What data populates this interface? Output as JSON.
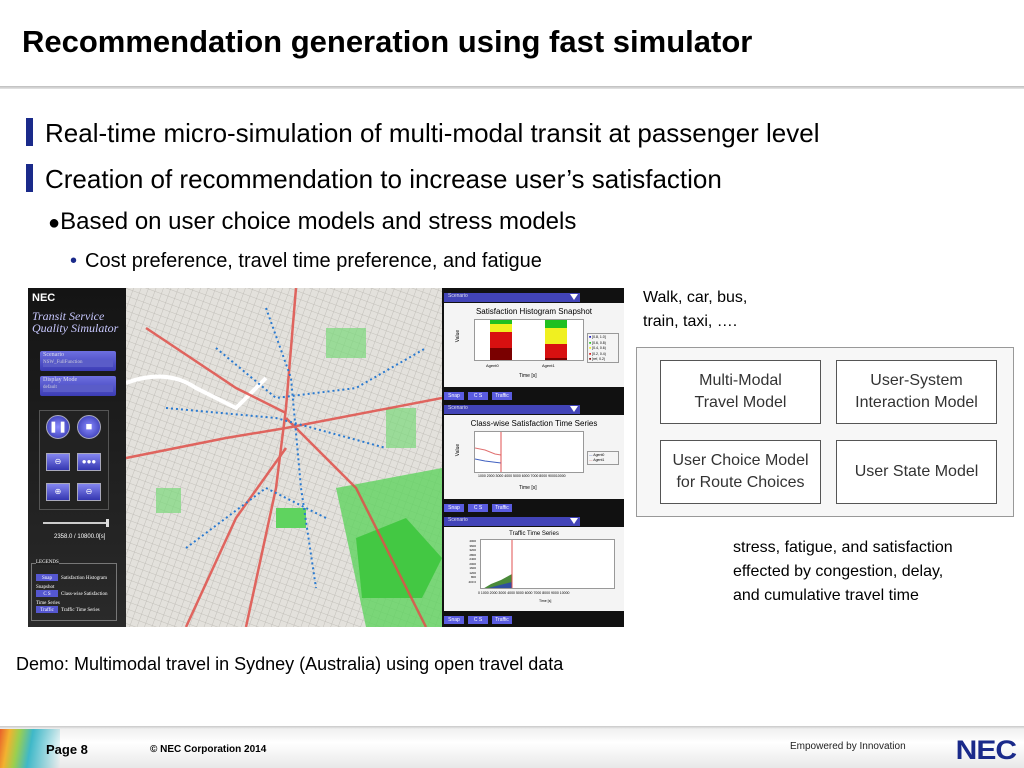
{
  "title": "Recommendation generation using fast simulator",
  "bullets": {
    "b1": "Real-time micro-simulation of multi-modal transit at passenger level",
    "b2": "Creation of recommendation to increase user’s satisfaction",
    "b3": "Based on user choice models and stress models",
    "b4": "Cost preference, travel time preference, and fatigue"
  },
  "simulator": {
    "logo": "NEC",
    "app_title": "Transit Service Quality Simulator",
    "scenario_label": "Scenario",
    "scenario_value": "NSW_FullFunction",
    "display_mode_label": "Display Mode",
    "display_mode_value": "default",
    "time_readout": "2358.0 / 10800.0[s]",
    "progress_fraction": 0.218,
    "legends_title": "LEGENDS",
    "legends": [
      {
        "btn": "Snap",
        "label": "Satisfaction Histogram Snapshot"
      },
      {
        "btn": "C S",
        "label": "Class-wise Satisfaction Time Series"
      },
      {
        "btn": "Traffic",
        "label": "Traffic Time Series"
      }
    ],
    "panel_buttons": [
      "Snap",
      "C S",
      "Traffic"
    ],
    "panels": [
      {
        "scenario": "Scenario",
        "title": "Satisfaction Histogram Snapshot",
        "ylabel": "Value",
        "xlabel": "Time [s]",
        "categories": [
          "Agent0",
          "Agent1"
        ],
        "legend": [
          "[0.8, 1.0]",
          "[0.6, 0.8)",
          "[0.4, 0.6)",
          "[0.2, 0.4)",
          "[ref, 0.2)"
        ]
      },
      {
        "scenario": "Scenario",
        "title": "Class-wise Satisfaction Time Series",
        "ylabel": "Value",
        "xlabel": "Time [s]",
        "xticks": "1000 2000 3000 4000 5000 6000 7000 8000 900010000",
        "legend": [
          "Agent0",
          "Agent1"
        ]
      },
      {
        "scenario": "Scenario",
        "title": "Traffic Time Series",
        "ylabel": "Value",
        "xlabel": "Time [s]",
        "xticks": "0 1000 2000 3000 4000 5000 6000 7000 8000 9000 10000",
        "yticks": "4000 3600 3200 2800 2400 2000 1600 1200 800 400 0"
      }
    ]
  },
  "side_top": [
    "Walk, car, bus,",
    "train, taxi, …."
  ],
  "diagram": {
    "boxes": [
      [
        "Multi-Modal",
        "Travel Model"
      ],
      [
        "User-System",
        "Interaction Model"
      ],
      [
        "User Choice Model",
        "for Route Choices"
      ],
      [
        "User State Model"
      ]
    ]
  },
  "side_bottom": [
    "stress, fatigue, and satisfaction",
    "effected by congestion, delay,",
    "and cumulative travel time"
  ],
  "demo": "Demo:  Multimodal travel in Sydney (Australia) using open travel data",
  "footer": {
    "page": "Page 8",
    "copyright": "© NEC Corporation 2014",
    "tagline": "Empowered by Innovation",
    "logo": "NEC"
  },
  "colors": {
    "accent": "#1a2a8a",
    "bar_darkred": "#7a0000",
    "bar_red": "#d81010",
    "bar_yellow": "#f0f020",
    "bar_green": "#20c020",
    "bar_blue": "#1010c0"
  }
}
